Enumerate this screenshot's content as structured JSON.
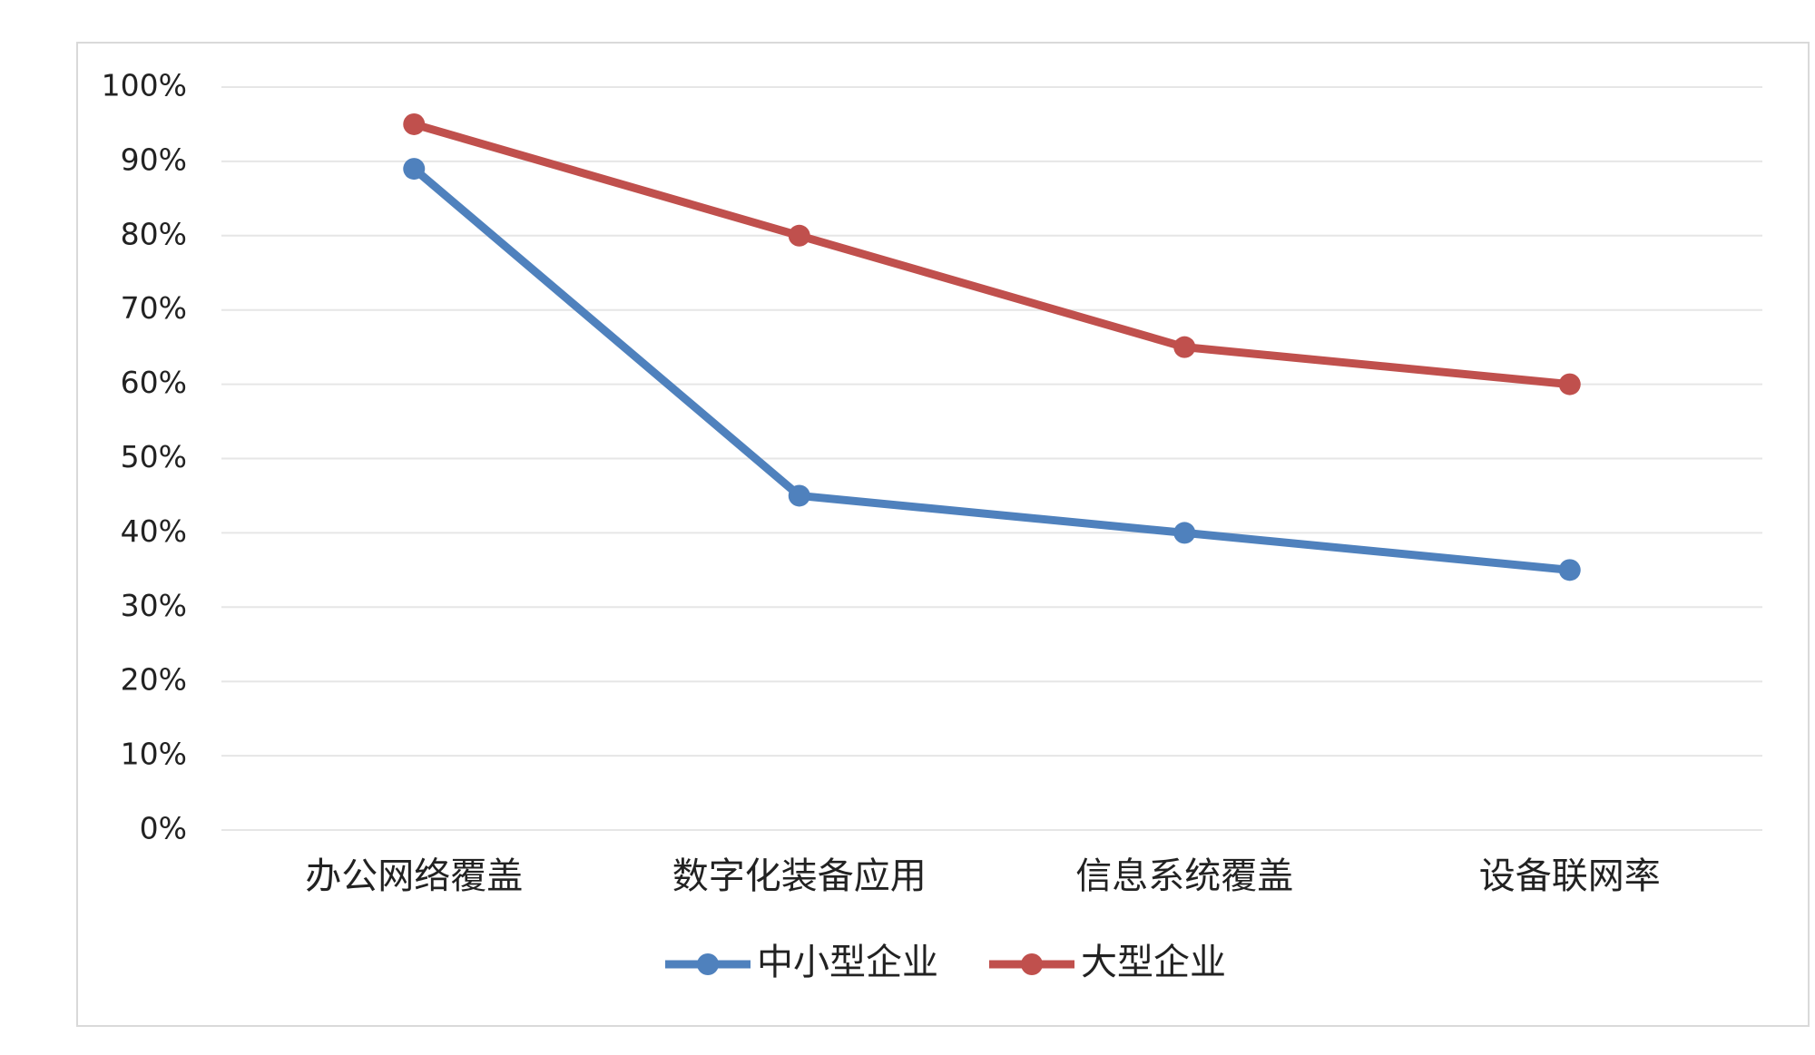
{
  "chart_data": {
    "type": "line",
    "categories": [
      "办公网络覆盖",
      "数字化装备应用",
      "信息系统覆盖",
      "设备联网率"
    ],
    "series": [
      {
        "name": "中小型企业",
        "color": "#4f81bd",
        "values": [
          89,
          45,
          40,
          35
        ]
      },
      {
        "name": "大型企业",
        "color": "#c0504d",
        "values": [
          95,
          80,
          65,
          60
        ]
      }
    ],
    "ylim": [
      0,
      100
    ],
    "yticks": [
      {
        "value": 0,
        "label": "0%"
      },
      {
        "value": 10,
        "label": "10%"
      },
      {
        "value": 20,
        "label": "20%"
      },
      {
        "value": 30,
        "label": "30%"
      },
      {
        "value": 40,
        "label": "40%"
      },
      {
        "value": 50,
        "label": "50%"
      },
      {
        "value": 60,
        "label": "60%"
      },
      {
        "value": 70,
        "label": "70%"
      },
      {
        "value": 80,
        "label": "80%"
      },
      {
        "value": 90,
        "label": "90%"
      },
      {
        "value": 100,
        "label": "100%"
      }
    ],
    "grid": true,
    "legend": "bottom"
  }
}
